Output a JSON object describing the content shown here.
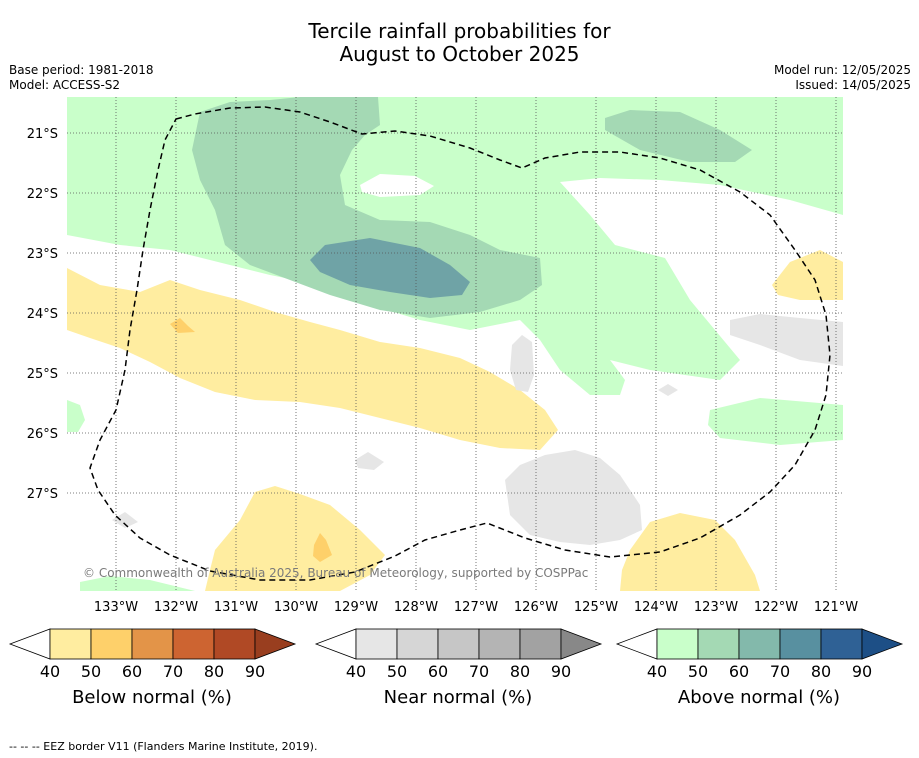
{
  "title_line1": "Tercile rainfall probabilities for",
  "title_line2": "August to October 2025",
  "meta_left": {
    "base_period": "Base period: 1981-2018",
    "model": "Model: ACCESS-S2"
  },
  "meta_right": {
    "model_run": "Model run: 12/05/2025",
    "issued": "Issued: 14/05/2025"
  },
  "copyright": "© Commonwealth of Australia 2025, Bureau of Meteorology, supported by COSPPac",
  "lat_ticks": [
    "21°S",
    "22°S",
    "23°S",
    "24°S",
    "25°S",
    "26°S",
    "27°S"
  ],
  "lon_ticks": [
    "133°W",
    "132°W",
    "131°W",
    "130°W",
    "129°W",
    "128°W",
    "127°W",
    "126°W",
    "125°W",
    "124°W",
    "123°W",
    "122°W",
    "121°W"
  ],
  "colorbars": [
    {
      "label": "Below normal (%)",
      "ticks": [
        "40",
        "50",
        "60",
        "70",
        "80",
        "90"
      ],
      "colors": [
        "#ffeda0",
        "#fed06a",
        "#e39448",
        "#cd6431",
        "#b04925"
      ],
      "end_color": "#993e1f"
    },
    {
      "label": "Near normal (%)",
      "ticks": [
        "40",
        "50",
        "60",
        "70",
        "80",
        "90"
      ],
      "colors": [
        "#e6e6e6",
        "#d6d6d6",
        "#c6c6c6",
        "#b4b4b4",
        "#a2a2a2"
      ],
      "end_color": "#888888"
    },
    {
      "label": "Above normal (%)",
      "ticks": [
        "40",
        "50",
        "60",
        "70",
        "80",
        "90"
      ],
      "colors": [
        "#c9ffca",
        "#a4d9b4",
        "#83b9ab",
        "#5890a0",
        "#2f6195"
      ],
      "end_color": "#1d4f86"
    }
  ],
  "footer": "--  --  -- EEZ border V11 (Flanders Marine Institute, 2019)."
}
